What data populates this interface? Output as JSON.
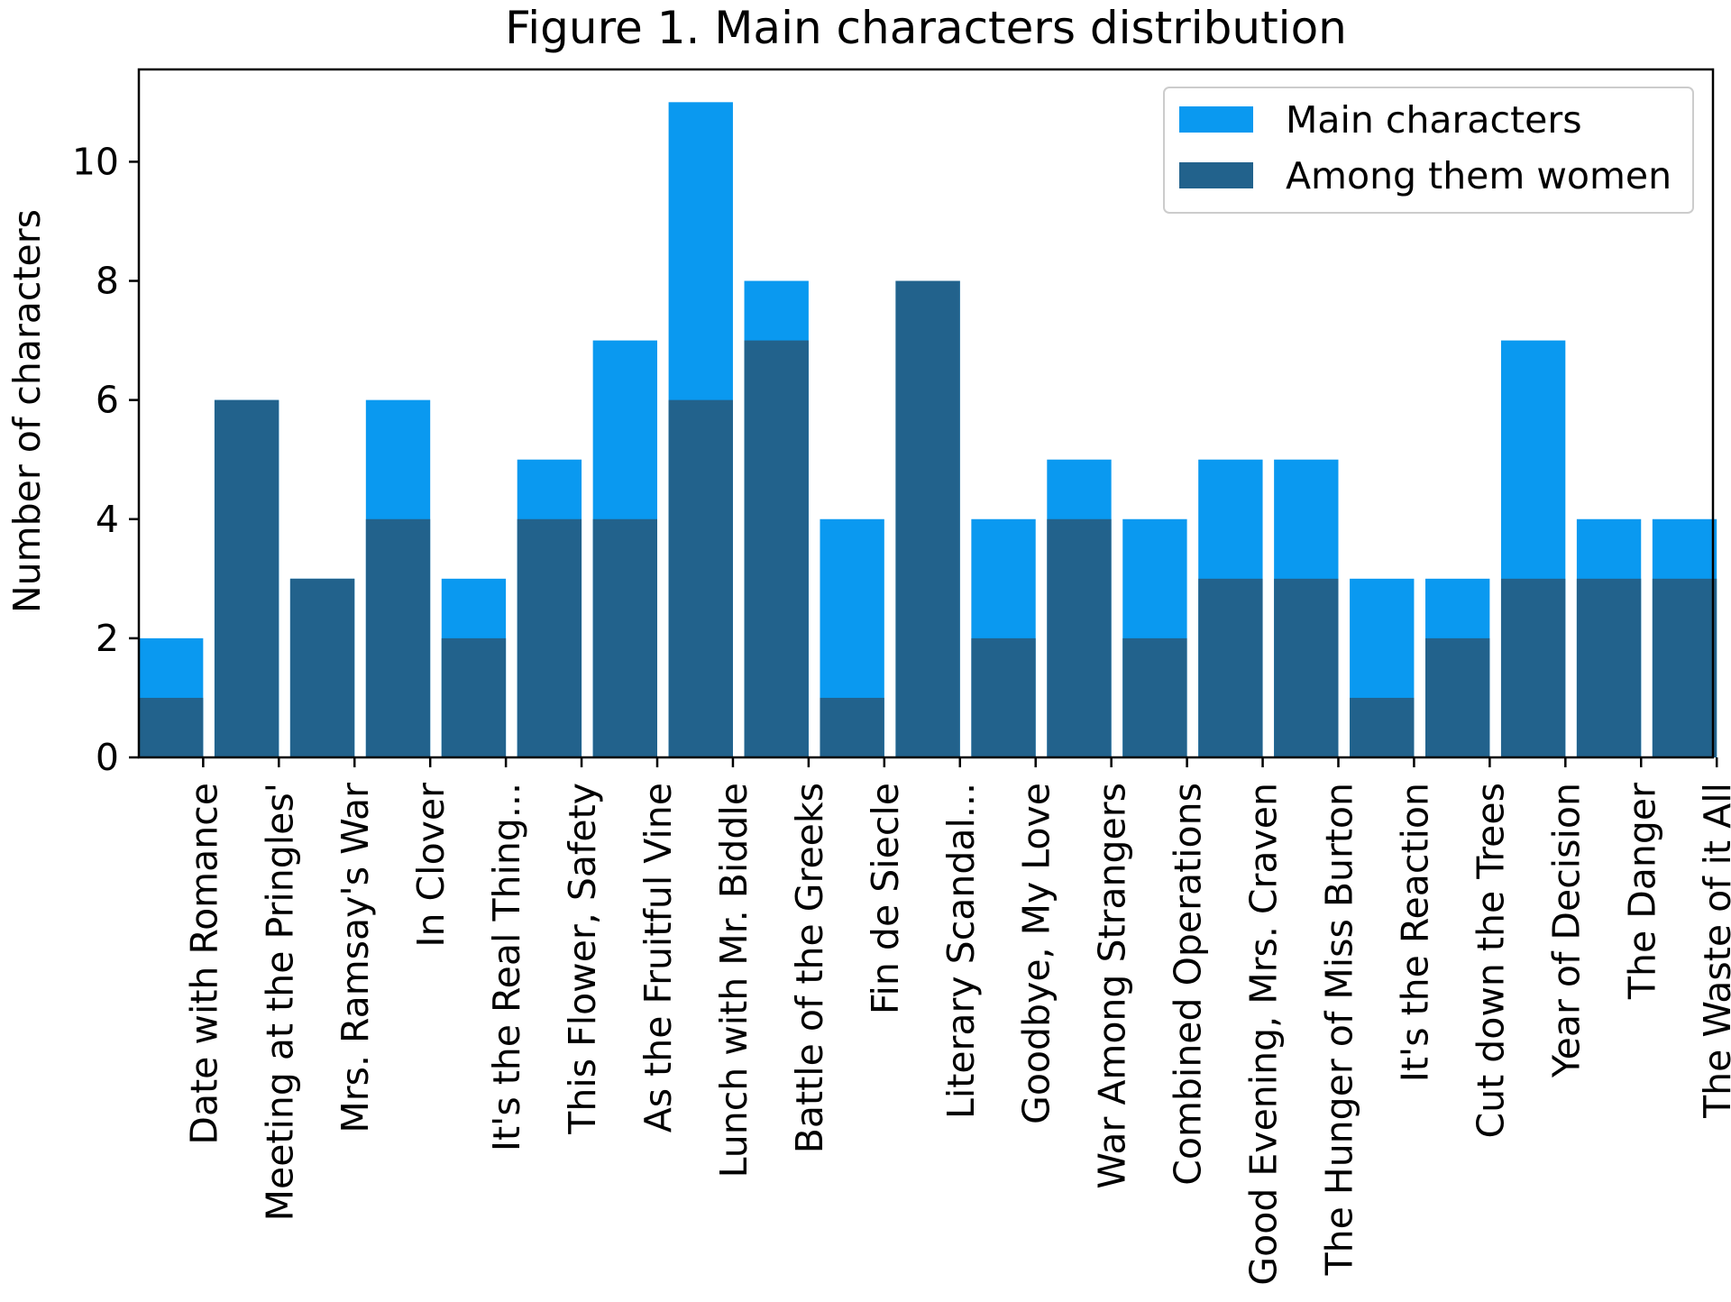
{
  "chart_data": {
    "type": "bar",
    "title": "Figure 1. Main characters distribution",
    "xlabel": "",
    "ylabel": "Number of characters",
    "ylim": [
      0,
      11.55
    ],
    "yticks": [
      "0",
      "2",
      "4",
      "6",
      "8",
      "10"
    ],
    "grid": false,
    "legend_position": "top-right",
    "categories": [
      "Date with Romance",
      "Meeting at the Pringles'",
      "Mrs. Ramsay's War",
      "In Clover",
      "It's the Real Thing...",
      "This Flower, Safety",
      "As the Fruitful Vine",
      "Lunch with Mr. Biddle",
      "Battle of the Greeks",
      "Fin de Siecle",
      "Literary Scandal...",
      "Goodbye, My Love",
      "War Among Strangers",
      "Combined Operations",
      "Good Evening, Mrs. Craven",
      "The Hunger of Miss Burton",
      "It's the Reaction",
      "Cut down the Trees",
      "Year of Decision",
      "The Danger",
      "The Waste of it All"
    ],
    "series": [
      {
        "name": "Main characters",
        "color": "#0a99f0",
        "values": [
          2,
          6,
          3,
          6,
          3,
          5,
          7,
          11,
          8,
          4,
          8,
          4,
          5,
          4,
          5,
          5,
          3,
          3,
          7,
          4,
          4
        ]
      },
      {
        "name": "Among them women",
        "color": "#22628c",
        "values": [
          1,
          6,
          3,
          4,
          2,
          4,
          4,
          6,
          7,
          1,
          8,
          2,
          4,
          2,
          3,
          3,
          1,
          2,
          3,
          3,
          3
        ]
      }
    ]
  }
}
